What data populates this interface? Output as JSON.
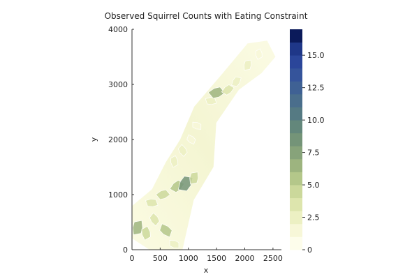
{
  "chart_data": {
    "type": "heatmap",
    "title": "Observed Squirrel Counts with Eating Constraint",
    "xlabel": "x",
    "ylabel": "y",
    "xlim": [
      0,
      2650
    ],
    "ylim": [
      0,
      4000
    ],
    "x_ticks": [
      "0",
      "500",
      "1000",
      "1500",
      "2000",
      "2500"
    ],
    "x_tick_values": [
      0,
      500,
      1000,
      1500,
      2000,
      2500
    ],
    "y_ticks": [
      "0",
      "1000",
      "2000",
      "3000",
      "4000"
    ],
    "y_tick_values": [
      0,
      1000,
      2000,
      3000,
      4000
    ],
    "colorbar": {
      "range": [
        0,
        17
      ],
      "ticks": [
        "0",
        "2.5",
        "5.0",
        "7.5",
        "10.0",
        "12.5",
        "15.0"
      ],
      "tick_values": [
        0,
        2.5,
        5.0,
        7.5,
        10.0,
        12.5,
        15.0
      ],
      "levels": 17,
      "colors": [
        "#fdfdeb",
        "#f7f7d8",
        "#ecf0c3",
        "#dde5ad",
        "#cbd89b",
        "#b4c78a",
        "#9db47f",
        "#87a37a",
        "#749478",
        "#63877b",
        "#557a83",
        "#4a6e8c",
        "#3f6194",
        "#35549b",
        "#2b469a",
        "#1f3788",
        "#0b1a5a"
      ]
    },
    "grid": false,
    "regions": [
      {
        "x": 100,
        "y": 400,
        "value": 6
      },
      {
        "x": 250,
        "y": 300,
        "value": 4
      },
      {
        "x": 400,
        "y": 550,
        "value": 3
      },
      {
        "x": 600,
        "y": 350,
        "value": 5
      },
      {
        "x": 750,
        "y": 100,
        "value": 2
      },
      {
        "x": 350,
        "y": 850,
        "value": 3
      },
      {
        "x": 550,
        "y": 1000,
        "value": 4
      },
      {
        "x": 800,
        "y": 1150,
        "value": 5
      },
      {
        "x": 950,
        "y": 1200,
        "value": 8
      },
      {
        "x": 1100,
        "y": 1300,
        "value": 4
      },
      {
        "x": 750,
        "y": 1600,
        "value": 2
      },
      {
        "x": 900,
        "y": 1800,
        "value": 2
      },
      {
        "x": 1050,
        "y": 2000,
        "value": 1
      },
      {
        "x": 1150,
        "y": 2250,
        "value": 1
      },
      {
        "x": 1400,
        "y": 2700,
        "value": 2
      },
      {
        "x": 1500,
        "y": 2850,
        "value": 6
      },
      {
        "x": 1700,
        "y": 2900,
        "value": 3
      },
      {
        "x": 1850,
        "y": 3050,
        "value": 2
      },
      {
        "x": 2050,
        "y": 3350,
        "value": 2
      },
      {
        "x": 2250,
        "y": 3550,
        "value": 1
      }
    ]
  }
}
